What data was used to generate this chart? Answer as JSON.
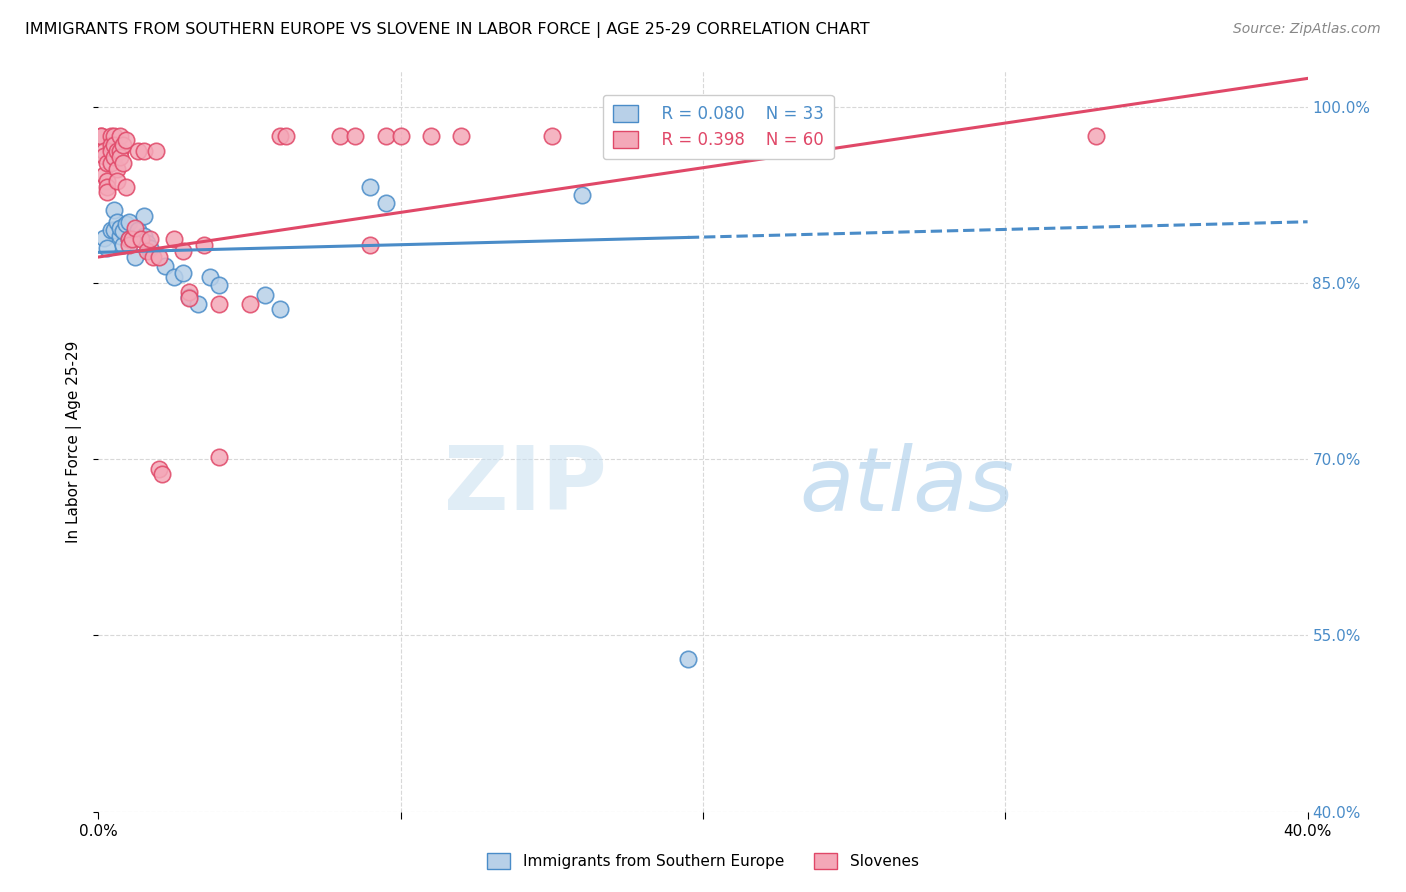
{
  "title": "IMMIGRANTS FROM SOUTHERN EUROPE VS SLOVENE IN LABOR FORCE | AGE 25-29 CORRELATION CHART",
  "source": "Source: ZipAtlas.com",
  "ylabel": "In Labor Force | Age 25-29",
  "y_ticks": [
    40.0,
    55.0,
    70.0,
    85.0,
    100.0
  ],
  "x_min": 0.0,
  "x_max": 0.4,
  "y_min": 0.4,
  "y_max": 1.03,
  "blue_R": 0.08,
  "blue_N": 33,
  "pink_R": 0.398,
  "pink_N": 60,
  "blue_color": "#b8d0e8",
  "pink_color": "#f4a8b8",
  "blue_line_color": "#4a8cc8",
  "pink_line_color": "#e04868",
  "watermark_zip": "ZIP",
  "watermark_atlas": "atlas",
  "blue_points": [
    [
      0.002,
      0.888
    ],
    [
      0.003,
      0.88
    ],
    [
      0.004,
      0.895
    ],
    [
      0.005,
      0.912
    ],
    [
      0.005,
      0.895
    ],
    [
      0.006,
      0.902
    ],
    [
      0.007,
      0.89
    ],
    [
      0.007,
      0.897
    ],
    [
      0.008,
      0.882
    ],
    [
      0.008,
      0.894
    ],
    [
      0.009,
      0.9
    ],
    [
      0.01,
      0.887
    ],
    [
      0.01,
      0.902
    ],
    [
      0.011,
      0.887
    ],
    [
      0.012,
      0.872
    ],
    [
      0.013,
      0.895
    ],
    [
      0.015,
      0.907
    ],
    [
      0.015,
      0.89
    ],
    [
      0.016,
      0.884
    ],
    [
      0.017,
      0.88
    ],
    [
      0.022,
      0.864
    ],
    [
      0.025,
      0.855
    ],
    [
      0.028,
      0.858
    ],
    [
      0.03,
      0.838
    ],
    [
      0.033,
      0.832
    ],
    [
      0.037,
      0.855
    ],
    [
      0.04,
      0.848
    ],
    [
      0.055,
      0.84
    ],
    [
      0.06,
      0.828
    ],
    [
      0.09,
      0.932
    ],
    [
      0.095,
      0.918
    ],
    [
      0.16,
      0.925
    ],
    [
      0.195,
      0.53
    ]
  ],
  "pink_points": [
    [
      0.001,
      0.975
    ],
    [
      0.001,
      0.975
    ],
    [
      0.002,
      0.962
    ],
    [
      0.002,
      0.958
    ],
    [
      0.002,
      0.942
    ],
    [
      0.003,
      0.952
    ],
    [
      0.003,
      0.937
    ],
    [
      0.003,
      0.932
    ],
    [
      0.003,
      0.927
    ],
    [
      0.004,
      0.975
    ],
    [
      0.004,
      0.967
    ],
    [
      0.004,
      0.962
    ],
    [
      0.004,
      0.952
    ],
    [
      0.005,
      0.975
    ],
    [
      0.005,
      0.967
    ],
    [
      0.005,
      0.957
    ],
    [
      0.006,
      0.962
    ],
    [
      0.006,
      0.947
    ],
    [
      0.006,
      0.937
    ],
    [
      0.007,
      0.975
    ],
    [
      0.007,
      0.962
    ],
    [
      0.007,
      0.957
    ],
    [
      0.008,
      0.967
    ],
    [
      0.008,
      0.952
    ],
    [
      0.009,
      0.972
    ],
    [
      0.009,
      0.932
    ],
    [
      0.01,
      0.887
    ],
    [
      0.01,
      0.882
    ],
    [
      0.011,
      0.887
    ],
    [
      0.012,
      0.897
    ],
    [
      0.013,
      0.962
    ],
    [
      0.014,
      0.887
    ],
    [
      0.015,
      0.962
    ],
    [
      0.016,
      0.877
    ],
    [
      0.017,
      0.887
    ],
    [
      0.018,
      0.872
    ],
    [
      0.019,
      0.962
    ],
    [
      0.02,
      0.872
    ],
    [
      0.02,
      0.692
    ],
    [
      0.021,
      0.687
    ],
    [
      0.025,
      0.887
    ],
    [
      0.028,
      0.877
    ],
    [
      0.03,
      0.842
    ],
    [
      0.03,
      0.837
    ],
    [
      0.035,
      0.882
    ],
    [
      0.04,
      0.702
    ],
    [
      0.04,
      0.832
    ],
    [
      0.05,
      0.832
    ],
    [
      0.06,
      0.975
    ],
    [
      0.062,
      0.975
    ],
    [
      0.08,
      0.975
    ],
    [
      0.085,
      0.975
    ],
    [
      0.09,
      0.882
    ],
    [
      0.095,
      0.975
    ],
    [
      0.1,
      0.975
    ],
    [
      0.11,
      0.975
    ],
    [
      0.12,
      0.975
    ],
    [
      0.15,
      0.975
    ],
    [
      0.2,
      0.975
    ],
    [
      0.33,
      0.975
    ]
  ],
  "blue_trend_intercept": 0.876,
  "blue_trend_slope": 0.065,
  "pink_trend_intercept": 0.872,
  "pink_trend_slope": 0.38
}
